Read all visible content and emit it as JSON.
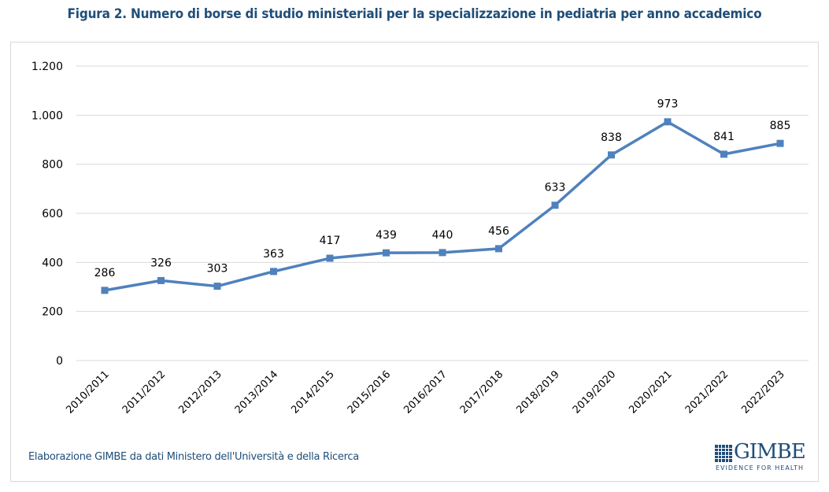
{
  "chart_data": {
    "type": "line",
    "title": "Figura 2. Numero di borse di studio ministeriali per la specializzazione in pediatria per anno accademico",
    "xlabel": "",
    "ylabel": "",
    "categories": [
      "2010/2011",
      "2011/2012",
      "2012/2013",
      "2013/2014",
      "2014/2015",
      "2015/2016",
      "2016/2017",
      "2017/2018",
      "2018/2019",
      "2019/2020",
      "2020/2021",
      "2021/2022",
      "2022/2023"
    ],
    "series": [
      {
        "name": "Borse di studio",
        "values": [
          286,
          326,
          303,
          363,
          417,
          439,
          440,
          456,
          633,
          838,
          973,
          841,
          885
        ],
        "color": "#4f81bd"
      }
    ],
    "ylim": [
      0,
      1200
    ],
    "yticks": [
      0,
      200,
      400,
      600,
      800,
      1000,
      1200
    ],
    "ytick_labels": [
      "0",
      "200",
      "400",
      "600",
      "800",
      "1.000",
      "1.200"
    ],
    "grid": true,
    "data_labels": true,
    "legend": "none"
  },
  "footer": {
    "source": "Elaborazione GIMBE da dati Ministero dell'Università e della Ricerca",
    "logo_name": "GIMBE",
    "logo_tagline": "EVIDENCE FOR HEALTH"
  },
  "colors": {
    "title": "#1f4e79",
    "line": "#4f81bd",
    "grid": "#d9d9d9",
    "text": "#000000"
  }
}
